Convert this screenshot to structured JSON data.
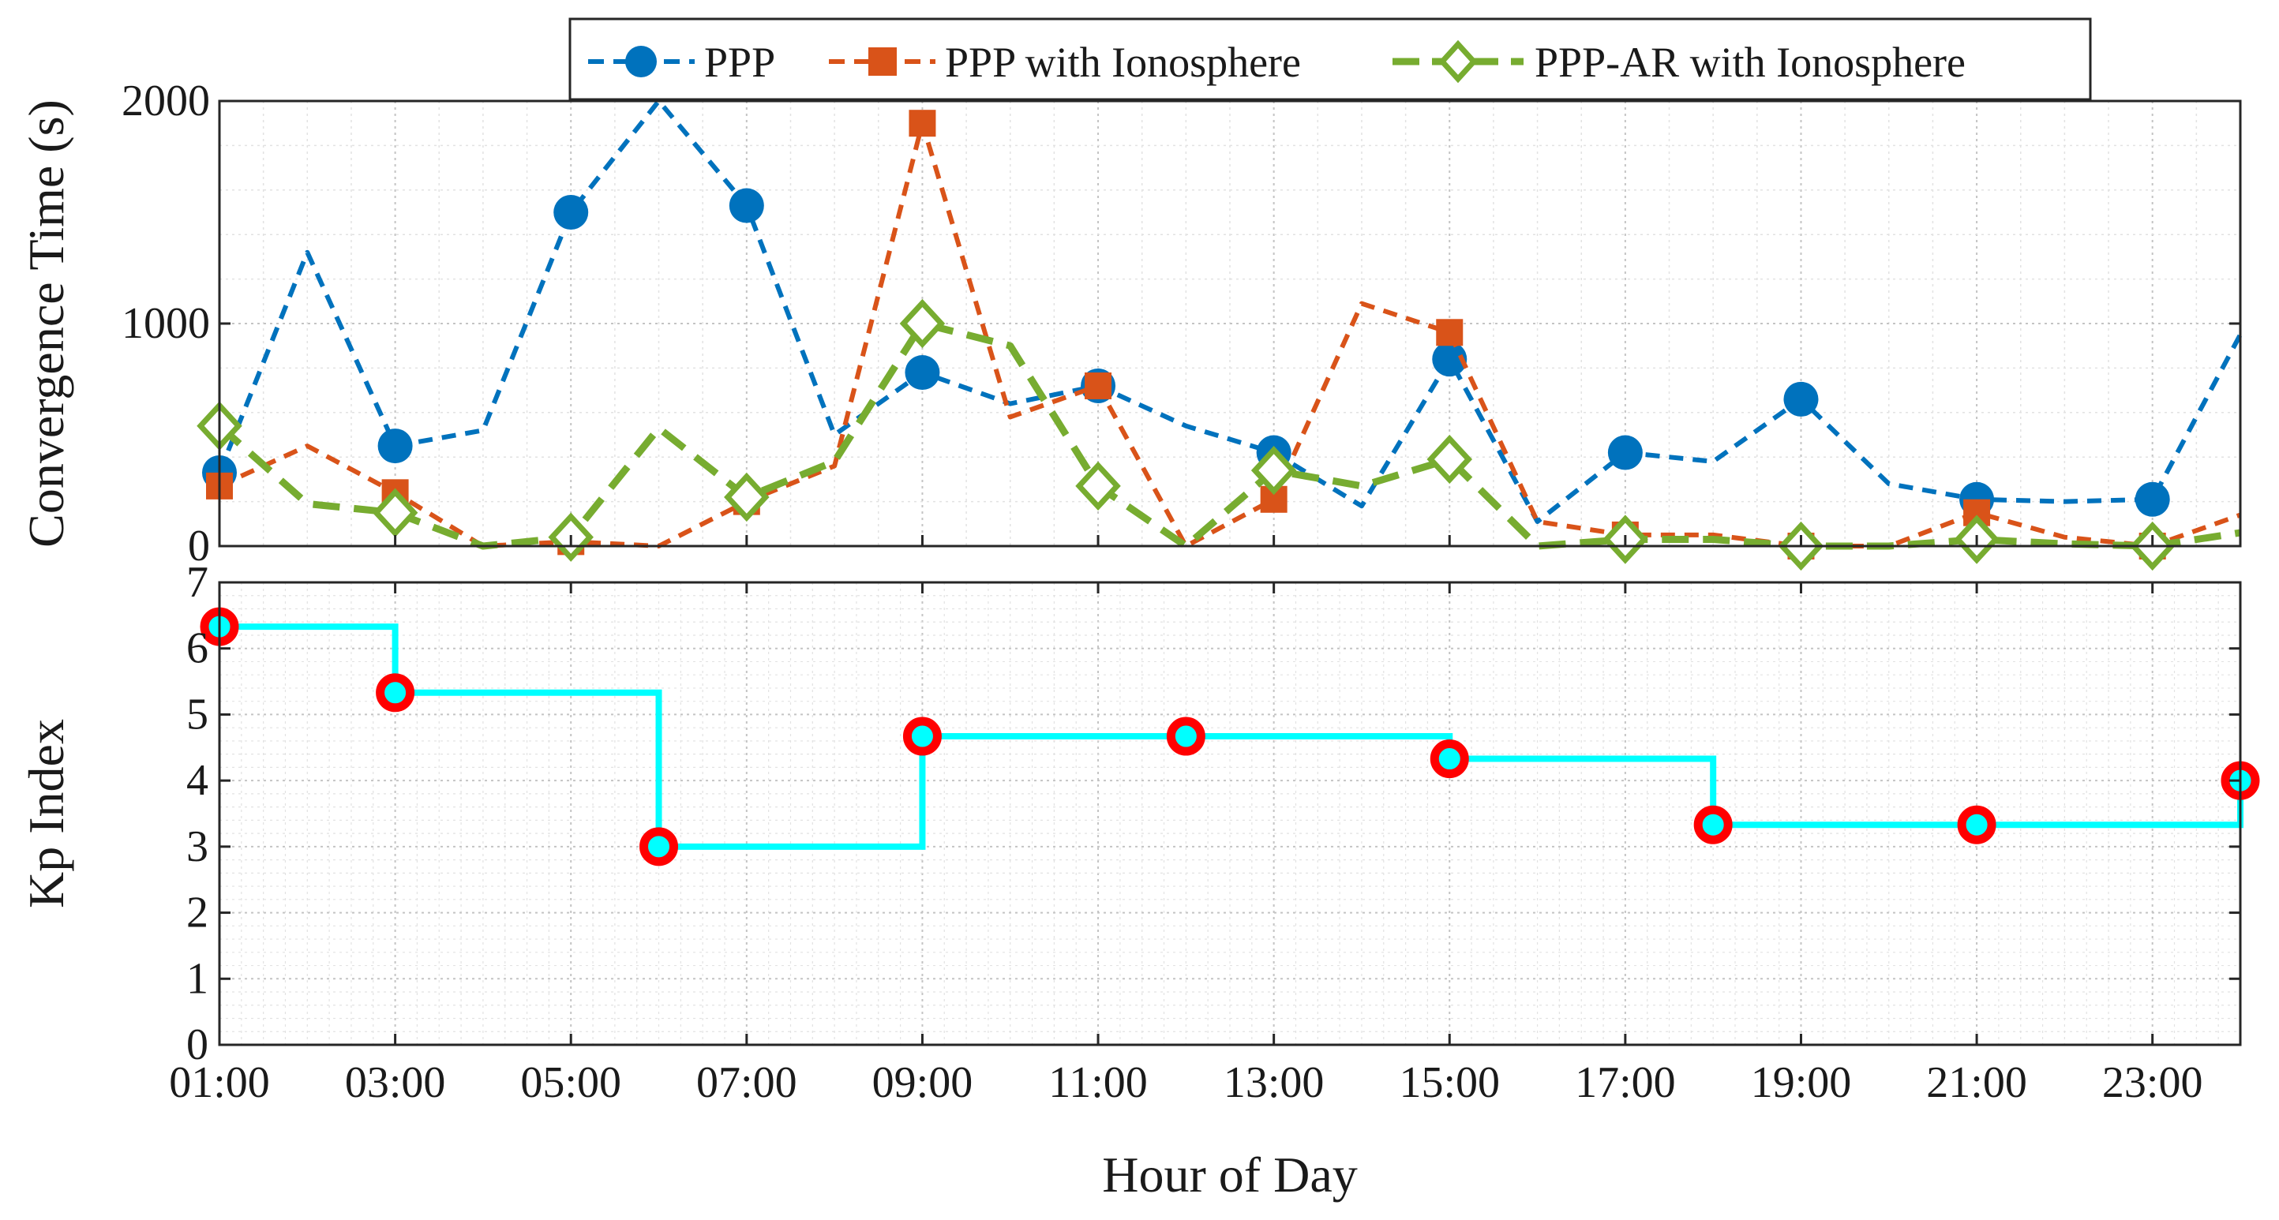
{
  "chart_data": [
    {
      "type": "line",
      "ylabel": "Convergence Time (s)",
      "ylim": [
        0,
        2000
      ],
      "yticks": [
        0,
        1000,
        2000
      ],
      "x_hours": [
        1,
        2,
        3,
        4,
        5,
        6,
        7,
        8,
        9,
        10,
        11,
        12,
        13,
        14,
        15,
        16,
        17,
        18,
        19,
        20,
        21,
        22,
        23,
        24
      ],
      "xlim": [
        1,
        24
      ],
      "grid": true,
      "legend_position": "top",
      "series": [
        {
          "name": "PPP",
          "color": "#0072BD",
          "marker": "circle",
          "linestyle": "dashed",
          "values": [
            330,
            1320,
            450,
            520,
            1500,
            2000,
            1530,
            500,
            780,
            640,
            720,
            540,
            420,
            180,
            840,
            110,
            420,
            380,
            660,
            280,
            210,
            200,
            210,
            950
          ]
        },
        {
          "name": "PPP with Ionosphere",
          "color": "#D95319",
          "marker": "square",
          "linestyle": "dashed",
          "values": [
            270,
            450,
            240,
            0,
            20,
            0,
            200,
            360,
            1900,
            580,
            720,
            0,
            210,
            1090,
            960,
            110,
            50,
            50,
            0,
            0,
            150,
            40,
            0,
            140
          ]
        },
        {
          "name": "PPP-AR with Ionosphere",
          "color": "#77AC30",
          "marker": "diamond",
          "linestyle": "dashed",
          "values": [
            540,
            190,
            150,
            0,
            40,
            530,
            220,
            380,
            1000,
            900,
            270,
            0,
            340,
            270,
            390,
            0,
            30,
            30,
            0,
            0,
            30,
            10,
            0,
            60
          ]
        }
      ]
    },
    {
      "type": "line",
      "ylabel": "Kp Index",
      "xlabel": "Hour of Day",
      "ylim": [
        0,
        7
      ],
      "yticks": [
        0,
        1,
        2,
        3,
        4,
        5,
        6,
        7
      ],
      "xlim": [
        1,
        24
      ],
      "xticks": [
        1,
        3,
        5,
        7,
        9,
        11,
        13,
        15,
        17,
        19,
        21,
        23
      ],
      "xtick_labels": [
        "01:00",
        "03:00",
        "05:00",
        "07:00",
        "09:00",
        "11:00",
        "13:00",
        "15:00",
        "17:00",
        "19:00",
        "21:00",
        "23:00"
      ],
      "grid": true,
      "series": [
        {
          "name": "Kp",
          "style": "step",
          "line_color": "#00FFFF",
          "marker_edge_color": "#FF0000",
          "x_hours": [
            1,
            3,
            6,
            9,
            12,
            15,
            18,
            21,
            24
          ],
          "values": [
            6.33,
            5.33,
            3.0,
            4.67,
            4.67,
            4.33,
            3.33,
            3.33,
            4.0
          ]
        }
      ]
    }
  ]
}
